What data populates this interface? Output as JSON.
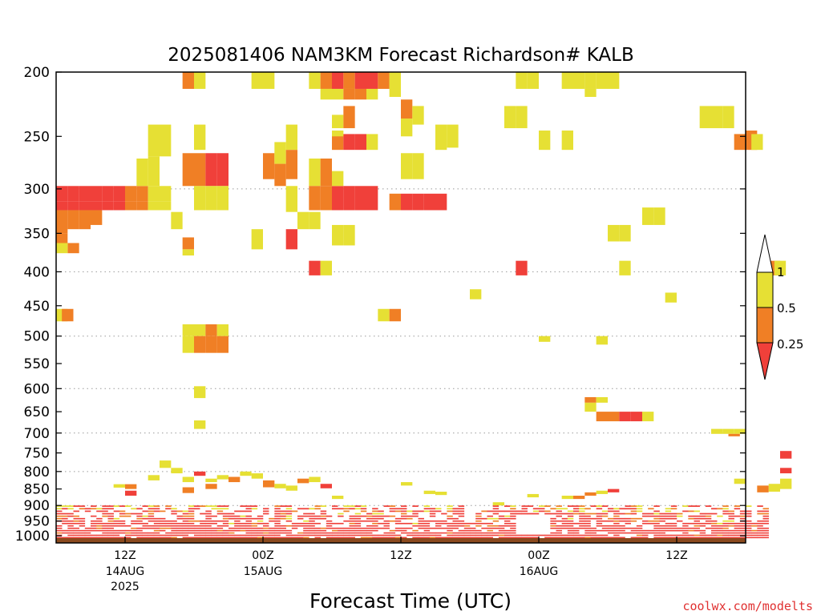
{
  "title": "2025081406 NAM3KM Forecast Richardson# KALB",
  "credit": "coolwx.com/modelts",
  "colors": {
    "ri_lt_025": "#f0403a",
    "ri_025_05": "#f07f25",
    "ri_05_1": "#e6e034",
    "ground": "#8b4a1e",
    "gridline": "#9a9a9a"
  },
  "chart_data": {
    "type": "heatmap",
    "title": "2025081406 NAM3KM Forecast Richardson# KALB",
    "xlabel": "Forecast Time (UTC)",
    "ylabel": "",
    "x_unit": "forecast hour",
    "xlim": [
      0,
      60
    ],
    "y_unit": "hPa",
    "ylim": [
      1025,
      200
    ],
    "y_scale": "log",
    "yticks": [
      200,
      250,
      300,
      350,
      400,
      450,
      500,
      550,
      600,
      650,
      700,
      750,
      800,
      850,
      900,
      950,
      1000
    ],
    "ytick_labels": [
      "200",
      "250",
      "300",
      "350",
      "400",
      "450",
      "500",
      "550",
      "600",
      "650",
      "700",
      "750",
      "800",
      "850",
      "900",
      "950",
      "1000"
    ],
    "grid_levels": [
      300,
      400,
      500,
      600,
      700,
      800,
      900
    ],
    "xticks": [
      {
        "x": 6,
        "label": "12Z",
        "date": "14AUG",
        "year": "2025"
      },
      {
        "x": 18,
        "label": "00Z",
        "date": "15AUG",
        "year": ""
      },
      {
        "x": 30,
        "label": "12Z",
        "date": "",
        "year": ""
      },
      {
        "x": 42,
        "label": "00Z",
        "date": "16AUG",
        "year": ""
      },
      {
        "x": 54,
        "label": "12Z",
        "date": "",
        "year": ""
      }
    ],
    "colorbar": {
      "labels": [
        "1",
        "0.5",
        "0.25"
      ],
      "categories": [
        {
          "range": "0.5-1",
          "color": "#e6e034"
        },
        {
          "range": "0.25-0.5",
          "color": "#f07f25"
        },
        {
          "range": "<0.25",
          "color": "#f0403a"
        }
      ],
      "placement": "right"
    },
    "ground_level_hpa": 1008,
    "cells": [
      [
        0,
        297,
        313,
        3
      ],
      [
        0,
        313,
        323,
        3
      ],
      [
        0,
        323,
        350,
        2
      ],
      [
        0,
        350,
        362,
        2
      ],
      [
        1,
        362,
        375,
        2
      ],
      [
        0,
        362,
        375,
        1
      ],
      [
        0,
        455,
        475,
        1
      ],
      [
        0.5,
        455,
        475,
        2
      ],
      [
        1,
        297,
        313,
        3
      ],
      [
        1,
        313,
        323,
        3
      ],
      [
        1,
        323,
        345,
        2
      ],
      [
        2,
        297,
        313,
        3
      ],
      [
        2,
        313,
        323,
        3
      ],
      [
        2,
        323,
        345,
        2
      ],
      [
        3,
        297,
        313,
        3
      ],
      [
        3,
        313,
        323,
        3
      ],
      [
        3,
        323,
        340,
        2
      ],
      [
        4,
        297,
        313,
        3
      ],
      [
        4,
        313,
        323,
        3
      ],
      [
        5,
        297,
        313,
        3
      ],
      [
        5,
        313,
        323,
        3
      ],
      [
        6,
        297,
        313,
        2
      ],
      [
        6,
        313,
        323,
        2
      ],
      [
        7,
        297,
        313,
        2
      ],
      [
        7,
        313,
        323,
        2
      ],
      [
        7,
        270,
        297,
        1
      ],
      [
        8,
        297,
        313,
        1
      ],
      [
        8,
        313,
        323,
        1
      ],
      [
        8,
        240,
        268,
        1
      ],
      [
        9,
        240,
        268,
        1
      ],
      [
        9,
        297,
        313,
        1
      ],
      [
        9,
        313,
        323,
        1
      ],
      [
        8,
        268,
        297,
        1
      ],
      [
        10,
        325,
        345,
        1
      ],
      [
        11,
        200,
        212,
        2
      ],
      [
        12,
        200,
        212,
        1
      ],
      [
        11,
        265,
        297,
        2
      ],
      [
        11,
        355,
        370,
        2
      ],
      [
        11,
        370,
        378,
        1
      ],
      [
        12,
        265,
        297,
        2
      ],
      [
        13,
        265,
        297,
        3
      ],
      [
        14,
        265,
        297,
        3
      ],
      [
        12,
        297,
        323,
        1
      ],
      [
        13,
        297,
        323,
        1
      ],
      [
        14,
        297,
        323,
        1
      ],
      [
        12,
        240,
        262,
        1
      ],
      [
        11,
        480,
        500,
        1
      ],
      [
        11,
        500,
        530,
        1
      ],
      [
        12,
        480,
        500,
        1
      ],
      [
        12,
        500,
        530,
        2
      ],
      [
        13,
        480,
        500,
        2
      ],
      [
        13,
        500,
        530,
        2
      ],
      [
        14,
        480,
        500,
        1
      ],
      [
        14,
        500,
        530,
        2
      ],
      [
        12,
        595,
        620,
        1
      ],
      [
        12,
        670,
        690,
        1
      ],
      [
        17,
        200,
        212,
        1
      ],
      [
        18,
        200,
        212,
        1
      ],
      [
        18,
        265,
        290,
        2
      ],
      [
        17,
        345,
        370,
        1
      ],
      [
        19,
        255,
        275,
        1
      ],
      [
        19,
        275,
        297,
        2
      ],
      [
        20,
        240,
        262,
        1
      ],
      [
        20,
        262,
        290,
        2
      ],
      [
        20,
        297,
        325,
        1
      ],
      [
        20,
        345,
        370,
        3
      ],
      [
        21,
        325,
        345,
        1
      ],
      [
        22,
        325,
        345,
        1
      ],
      [
        22,
        200,
        212,
        1
      ],
      [
        23,
        200,
        212,
        2
      ],
      [
        24,
        200,
        212,
        3
      ],
      [
        25,
        200,
        212,
        2
      ],
      [
        26,
        200,
        212,
        3
      ],
      [
        27,
        200,
        212,
        3
      ],
      [
        28,
        200,
        212,
        2
      ],
      [
        29,
        200,
        212,
        1
      ],
      [
        23,
        212,
        220,
        1
      ],
      [
        24,
        212,
        220,
        1
      ],
      [
        25,
        212,
        220,
        2
      ],
      [
        26,
        212,
        220,
        2
      ],
      [
        27,
        212,
        220,
        1
      ],
      [
        22,
        270,
        297,
        1
      ],
      [
        23,
        270,
        297,
        2
      ],
      [
        23,
        297,
        323,
        2
      ],
      [
        22,
        297,
        323,
        2
      ],
      [
        24,
        297,
        323,
        3
      ],
      [
        25,
        297,
        323,
        3
      ],
      [
        26,
        297,
        323,
        3
      ],
      [
        27,
        297,
        323,
        3
      ],
      [
        24,
        282,
        297,
        1
      ],
      [
        24,
        340,
        365,
        1
      ],
      [
        25,
        340,
        365,
        1
      ],
      [
        24,
        232,
        243,
        1
      ],
      [
        25,
        225,
        243,
        2
      ],
      [
        24,
        248,
        262,
        2
      ],
      [
        25,
        248,
        262,
        3
      ],
      [
        26,
        248,
        262,
        3
      ],
      [
        27,
        248,
        262,
        1
      ],
      [
        24,
        245,
        250,
        1
      ],
      [
        22,
        385,
        405,
        3
      ],
      [
        23,
        385,
        405,
        1
      ],
      [
        29,
        305,
        323,
        2
      ],
      [
        30,
        305,
        323,
        3
      ],
      [
        31,
        305,
        323,
        3
      ],
      [
        32,
        305,
        323,
        3
      ],
      [
        33,
        305,
        323,
        3
      ],
      [
        30,
        220,
        235,
        2
      ],
      [
        31,
        225,
        240,
        1
      ],
      [
        30,
        265,
        290,
        1
      ],
      [
        31,
        265,
        290,
        1
      ],
      [
        29,
        200,
        218,
        1
      ],
      [
        28,
        455,
        475,
        1
      ],
      [
        29,
        455,
        475,
        2
      ],
      [
        30,
        235,
        250,
        1
      ],
      [
        33,
        240,
        262,
        1
      ],
      [
        34,
        240,
        260,
        1
      ],
      [
        36,
        425,
        440,
        1
      ],
      [
        40,
        200,
        212,
        1
      ],
      [
        41,
        200,
        212,
        1
      ],
      [
        39,
        225,
        243,
        1
      ],
      [
        40,
        225,
        243,
        1
      ],
      [
        40,
        385,
        405,
        3
      ],
      [
        42,
        245,
        262,
        1
      ],
      [
        44,
        245,
        262,
        1
      ],
      [
        44,
        200,
        212,
        1
      ],
      [
        45,
        200,
        212,
        1
      ],
      [
        46,
        200,
        212,
        1
      ],
      [
        47,
        200,
        212,
        1
      ],
      [
        48,
        200,
        212,
        1
      ],
      [
        46,
        212,
        218,
        1
      ],
      [
        48,
        340,
        360,
        1
      ],
      [
        49,
        340,
        360,
        1
      ],
      [
        49,
        385,
        405,
        1
      ],
      [
        51,
        320,
        340,
        1
      ],
      [
        52,
        320,
        340,
        1
      ],
      [
        53,
        430,
        445,
        1
      ],
      [
        56,
        225,
        243,
        1
      ],
      [
        57,
        225,
        243,
        1
      ],
      [
        58,
        225,
        243,
        1
      ],
      [
        59,
        248,
        262,
        2
      ],
      [
        60,
        245,
        262,
        2
      ],
      [
        60.5,
        248,
        262,
        1
      ],
      [
        62,
        385,
        405,
        2
      ],
      [
        62.5,
        385,
        405,
        1
      ],
      [
        42,
        500,
        510,
        1
      ],
      [
        47,
        500,
        515,
        1
      ],
      [
        46,
        618,
        630,
        2
      ],
      [
        46,
        630,
        650,
        1
      ],
      [
        47,
        618,
        630,
        1
      ],
      [
        47,
        650,
        672,
        2
      ],
      [
        48,
        650,
        672,
        2
      ],
      [
        49,
        650,
        672,
        3
      ],
      [
        50,
        650,
        672,
        3
      ],
      [
        51,
        650,
        672,
        1
      ],
      [
        57,
        690,
        702,
        1
      ],
      [
        58,
        690,
        702,
        1
      ],
      [
        59,
        690,
        702,
        1
      ],
      [
        58.5,
        702,
        708,
        2
      ],
      [
        63,
        745,
        765,
        3
      ],
      [
        63,
        790,
        805,
        3
      ],
      [
        63,
        820,
        850,
        1
      ],
      [
        62,
        835,
        858,
        1
      ],
      [
        61,
        840,
        860,
        2
      ],
      [
        59,
        820,
        835,
        1
      ],
      [
        6,
        836,
        850,
        2
      ],
      [
        5,
        836,
        846,
        1
      ],
      [
        6,
        855,
        870,
        3
      ],
      [
        8,
        810,
        825,
        1
      ],
      [
        9,
        770,
        790,
        1
      ],
      [
        10,
        790,
        805,
        1
      ],
      [
        11,
        815,
        830,
        1
      ],
      [
        11,
        845,
        862,
        2
      ],
      [
        12,
        800,
        812,
        3
      ],
      [
        13,
        820,
        830,
        1
      ],
      [
        13,
        835,
        850,
        2
      ],
      [
        14,
        810,
        822,
        1
      ],
      [
        15,
        815,
        830,
        2
      ],
      [
        16,
        800,
        812,
        1
      ],
      [
        17,
        805,
        820,
        1
      ],
      [
        18,
        825,
        845,
        2
      ],
      [
        19,
        835,
        848,
        1
      ],
      [
        20,
        840,
        855,
        1
      ],
      [
        21,
        820,
        833,
        2
      ],
      [
        22,
        815,
        830,
        1
      ],
      [
        23,
        835,
        848,
        3
      ],
      [
        24,
        870,
        880,
        1
      ],
      [
        30,
        830,
        840,
        1
      ],
      [
        32,
        855,
        865,
        1
      ],
      [
        33,
        858,
        868,
        1
      ],
      [
        38,
        890,
        900,
        1
      ],
      [
        41,
        865,
        875,
        1
      ],
      [
        44,
        870,
        880,
        1
      ],
      [
        45,
        870,
        880,
        2
      ],
      [
        46,
        860,
        870,
        2
      ],
      [
        47,
        855,
        865,
        1
      ],
      [
        48,
        850,
        860,
        3
      ]
    ],
    "boundary_layer": {
      "x_start": 0,
      "x_end": 62,
      "x_step": 0.5,
      "p_top": 900,
      "p_bottom": 1008,
      "p_step": 8
    }
  }
}
